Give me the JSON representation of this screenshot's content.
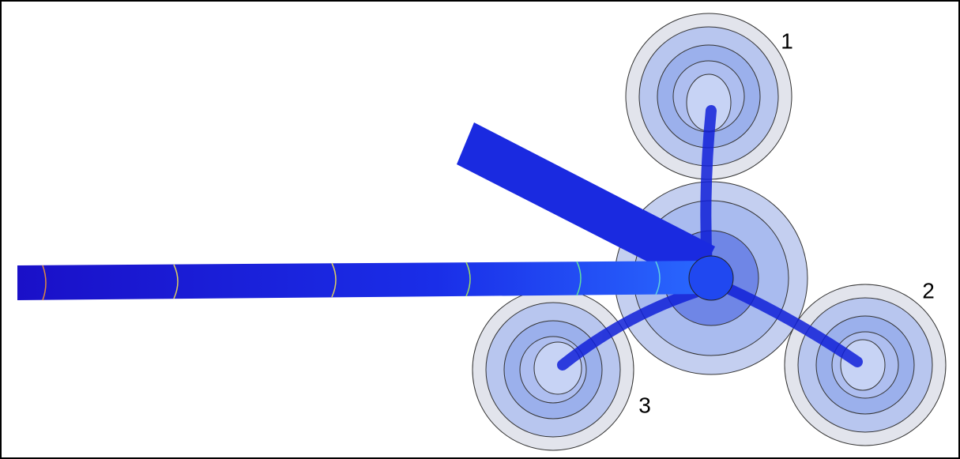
{
  "labels": [
    "1",
    "2",
    "3"
  ]
}
